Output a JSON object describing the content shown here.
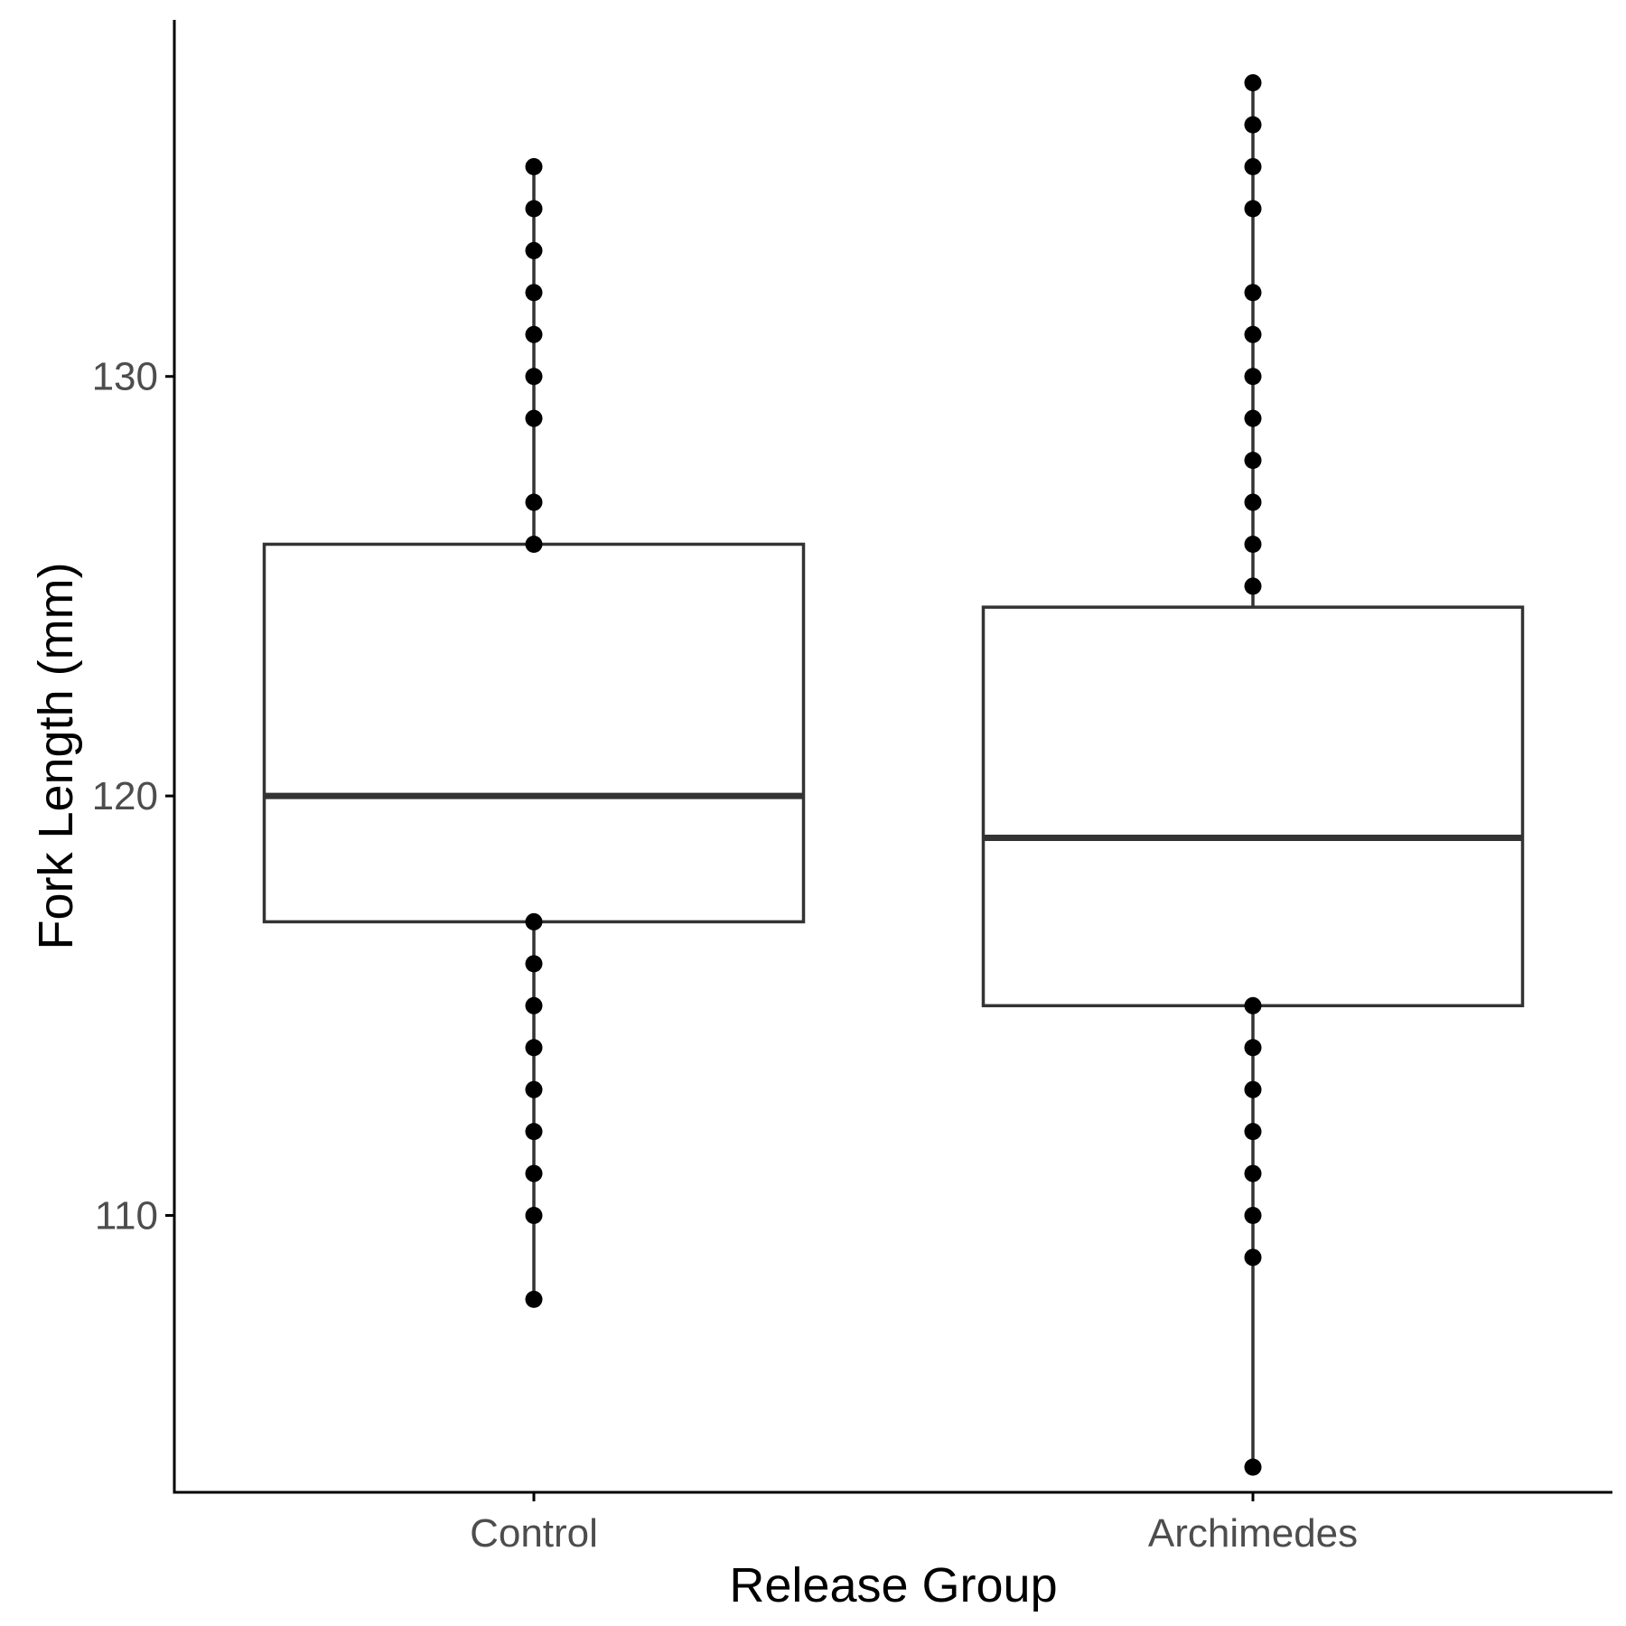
{
  "chart_data": {
    "type": "box",
    "xlabel": "Release Group",
    "ylabel": "Fork Length (mm)",
    "categories": [
      "Control",
      "Archimedes"
    ],
    "y_ticks": [
      110,
      120,
      130
    ],
    "ylim": [
      103.4,
      138.5
    ],
    "grid": false,
    "legend": "none",
    "boxes": [
      {
        "category": "Control",
        "q1": 117,
        "median": 120,
        "q3": 126,
        "whisker_low": 108,
        "whisker_high": 135
      },
      {
        "category": "Archimedes",
        "q1": 115,
        "median": 119,
        "q3": 124.5,
        "whisker_low": 104,
        "whisker_high": 137
      }
    ],
    "points": [
      {
        "category": "Control",
        "values": [
          108,
          110,
          111,
          112,
          113,
          114,
          115,
          116,
          117,
          126,
          127,
          129,
          130,
          131,
          132,
          133,
          134,
          135
        ]
      },
      {
        "category": "Archimedes",
        "values": [
          104,
          109,
          110,
          111,
          112,
          113,
          114,
          115,
          125,
          126,
          127,
          128,
          129,
          130,
          131,
          132,
          134,
          135,
          136,
          137
        ]
      }
    ]
  },
  "colors": {
    "box_stroke": "#333333",
    "axis": "#000000",
    "point": "#000000",
    "tick_text": "#4d4d4d"
  }
}
